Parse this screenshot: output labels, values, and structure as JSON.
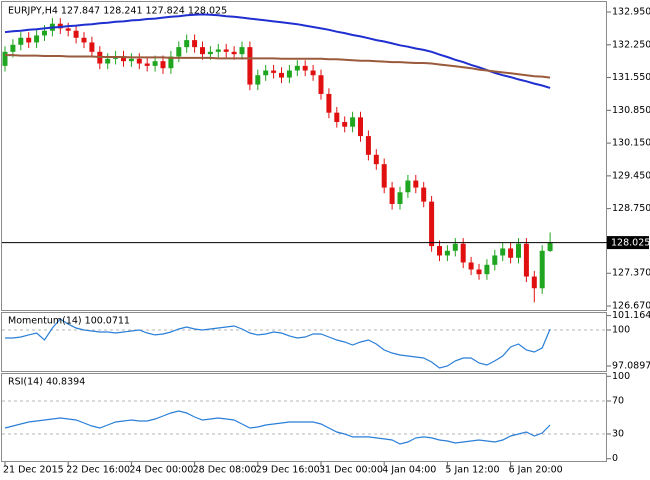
{
  "chart_data": [
    {
      "type": "candlestick",
      "title": "EURJPY,H4 127.847 128.241 127.824 128.025",
      "categories": [
        "21 Dec 2015",
        null,
        null,
        null,
        null,
        null,
        null,
        null,
        "22 Dec 16:00",
        null,
        null,
        null,
        null,
        null,
        null,
        null,
        "24 Dec 00:00",
        null,
        null,
        null,
        null,
        null,
        null,
        null,
        "28 Dec 08:00",
        null,
        null,
        null,
        null,
        null,
        null,
        null,
        "29 Dec 16:00",
        null,
        null,
        null,
        null,
        null,
        null,
        null,
        "31 Dec 00:00",
        null,
        null,
        null,
        null,
        null,
        null,
        null,
        "4 Jan 04:00",
        null,
        null,
        null,
        null,
        null,
        null,
        null,
        "5 Jan 12:00",
        null,
        null,
        null,
        null,
        null,
        null,
        null,
        "6 Jan 20:00",
        null,
        null,
        null,
        null,
        null
      ],
      "open": [
        131.8,
        132.1,
        132.25,
        132.4,
        132.3,
        132.45,
        132.55,
        132.7,
        132.6,
        132.55,
        132.4,
        132.3,
        132.1,
        131.85,
        131.95,
        132.0,
        131.9,
        131.95,
        131.85,
        131.8,
        131.9,
        131.75,
        132.0,
        132.2,
        132.35,
        132.2,
        132.05,
        132.1,
        132.15,
        132.1,
        132.05,
        132.2,
        131.4,
        131.6,
        131.7,
        131.65,
        131.55,
        131.7,
        131.8,
        131.7,
        131.6,
        131.2,
        130.8,
        130.6,
        130.5,
        130.7,
        130.3,
        129.9,
        129.7,
        129.2,
        128.85,
        129.1,
        129.35,
        129.2,
        128.9,
        127.95,
        127.75,
        127.85,
        128.0,
        127.6,
        127.45,
        127.35,
        127.55,
        127.75,
        127.9,
        127.7,
        128.0,
        127.3,
        127.05,
        127.847
      ],
      "high": [
        132.22,
        132.37,
        132.52,
        132.52,
        132.57,
        132.67,
        132.82,
        132.82,
        132.72,
        132.67,
        132.52,
        132.42,
        132.22,
        132.07,
        132.12,
        132.12,
        132.07,
        132.07,
        131.97,
        132.02,
        132.02,
        132.12,
        132.32,
        132.47,
        132.47,
        132.32,
        132.22,
        132.27,
        132.27,
        132.22,
        132.32,
        132.32,
        131.72,
        131.82,
        131.82,
        131.77,
        131.82,
        131.92,
        131.92,
        131.82,
        131.72,
        131.32,
        130.92,
        130.72,
        130.82,
        130.82,
        130.42,
        130.02,
        129.82,
        129.32,
        129.22,
        129.47,
        129.47,
        129.32,
        129.02,
        128.07,
        127.97,
        128.12,
        128.12,
        127.72,
        127.57,
        127.67,
        127.87,
        128.02,
        128.02,
        128.12,
        128.12,
        127.42,
        127.97,
        128.241
      ],
      "low": [
        131.68,
        131.98,
        132.13,
        132.18,
        132.18,
        132.33,
        132.43,
        132.48,
        132.43,
        132.28,
        132.18,
        131.98,
        131.73,
        131.73,
        131.83,
        131.78,
        131.78,
        131.73,
        131.68,
        131.68,
        131.63,
        131.63,
        131.88,
        132.08,
        132.08,
        131.93,
        131.93,
        131.98,
        131.98,
        131.93,
        131.93,
        131.28,
        131.28,
        131.48,
        131.53,
        131.43,
        131.43,
        131.58,
        131.58,
        131.48,
        131.08,
        130.68,
        130.48,
        130.38,
        130.38,
        130.18,
        129.78,
        129.58,
        129.08,
        128.73,
        128.73,
        128.98,
        129.08,
        128.78,
        127.83,
        127.63,
        127.63,
        127.73,
        127.48,
        127.33,
        127.23,
        127.23,
        127.43,
        127.63,
        127.58,
        127.58,
        127.18,
        126.75,
        126.93,
        127.824
      ],
      "close": [
        132.1,
        132.25,
        132.4,
        132.3,
        132.45,
        132.55,
        132.7,
        132.6,
        132.55,
        132.4,
        132.3,
        132.1,
        131.85,
        131.95,
        132.0,
        131.9,
        131.95,
        131.85,
        131.8,
        131.9,
        131.75,
        132.0,
        132.2,
        132.35,
        132.2,
        132.05,
        132.1,
        132.15,
        132.1,
        132.05,
        132.2,
        131.4,
        131.6,
        131.7,
        131.65,
        131.55,
        131.7,
        131.8,
        131.7,
        131.6,
        131.2,
        130.8,
        130.6,
        130.5,
        130.7,
        130.3,
        129.9,
        129.7,
        129.2,
        128.85,
        129.1,
        129.35,
        129.2,
        128.9,
        127.95,
        127.75,
        127.85,
        128.0,
        127.6,
        127.45,
        127.35,
        127.55,
        127.75,
        127.9,
        127.7,
        128.0,
        127.3,
        127.05,
        127.85,
        128.025
      ],
      "up_color": "#1fa51f",
      "down_color": "#e01010",
      "series": [
        {
          "color": "#1f2fd0",
          "values": [
            132.52,
            132.54,
            132.55,
            132.57,
            132.58,
            132.6,
            132.62,
            132.63,
            132.65,
            132.66,
            132.68,
            132.69,
            132.71,
            132.72,
            132.74,
            132.75,
            132.77,
            132.78,
            132.8,
            132.81,
            132.83,
            132.85,
            132.86,
            132.88,
            132.89,
            132.9,
            132.89,
            132.88,
            132.86,
            132.85,
            132.83,
            132.81,
            132.79,
            132.77,
            132.75,
            132.73,
            132.71,
            132.69,
            132.66,
            132.63,
            132.6,
            132.57,
            132.53,
            132.5,
            132.46,
            132.43,
            132.39,
            132.35,
            132.32,
            132.28,
            132.24,
            132.21,
            132.17,
            132.14,
            132.1,
            132.04,
            131.99,
            131.93,
            131.88,
            131.82,
            131.77,
            131.71,
            131.65,
            131.6,
            131.56,
            131.51,
            131.47,
            131.42,
            131.38,
            131.33
          ]
        },
        {
          "color": "#9a5a3c",
          "values": [
            132.03,
            132.03,
            132.02,
            132.02,
            132.02,
            132.01,
            132.01,
            132.01,
            132.0,
            132.0,
            132.0,
            132.0,
            131.99,
            131.99,
            131.99,
            131.99,
            131.98,
            131.98,
            131.98,
            131.98,
            131.98,
            131.97,
            131.97,
            131.97,
            131.97,
            131.97,
            131.97,
            131.96,
            131.96,
            131.96,
            131.96,
            131.96,
            131.96,
            131.96,
            131.96,
            131.95,
            131.95,
            131.95,
            131.95,
            131.95,
            131.95,
            131.94,
            131.94,
            131.93,
            131.92,
            131.91,
            131.91,
            131.9,
            131.89,
            131.88,
            131.88,
            131.87,
            131.86,
            131.86,
            131.85,
            131.83,
            131.81,
            131.79,
            131.77,
            131.75,
            131.72,
            131.7,
            131.68,
            131.66,
            131.64,
            131.62,
            131.6,
            131.58,
            131.57,
            131.55
          ]
        }
      ],
      "last_price": 128.025,
      "ylim": [
        126.585,
        133.164
      ],
      "yticks": [
        {
          "value": 132.95,
          "label": "132.950"
        },
        {
          "value": 132.25,
          "label": "132.250"
        },
        {
          "value": 131.55,
          "label": "131.550"
        },
        {
          "value": 130.85,
          "label": "130.850"
        },
        {
          "value": 130.15,
          "label": "130.150"
        },
        {
          "value": 129.45,
          "label": "129.450"
        },
        {
          "value": 128.75,
          "label": "128.750"
        },
        {
          "value": 127.37,
          "label": "127.370"
        },
        {
          "value": 126.67,
          "label": "126.670"
        }
      ]
    },
    {
      "type": "line",
      "title": "Momentum(14) 100.0711",
      "color": "#2a7fd8",
      "values": [
        99.35,
        99.35,
        99.43,
        99.6,
        99.76,
        99.19,
        100.16,
        100.89,
        100.48,
        100.16,
        100.0,
        99.92,
        99.84,
        99.84,
        99.76,
        99.84,
        99.92,
        100.0,
        99.76,
        99.6,
        99.68,
        99.84,
        100.08,
        100.24,
        100.08,
        100.0,
        100.08,
        100.16,
        100.24,
        100.32,
        100.08,
        99.76,
        99.6,
        99.68,
        99.84,
        99.76,
        99.52,
        99.35,
        99.43,
        99.68,
        99.68,
        99.43,
        99.19,
        99.03,
        98.79,
        99.03,
        99.19,
        98.87,
        98.38,
        98.14,
        97.98,
        97.9,
        97.82,
        97.74,
        97.41,
        96.93,
        97.09,
        97.5,
        97.74,
        97.74,
        97.33,
        97.17,
        97.5,
        97.9,
        98.63,
        98.87,
        98.38,
        98.22,
        98.55,
        100.07
      ],
      "levels": [
        100
      ],
      "ylim": [
        96.606,
        101.454
      ],
      "yticks": [
        101.1648,
        100,
        97.0897
      ]
    },
    {
      "type": "line",
      "title": "RSI(14) 40.8394",
      "color": "#2a7fd8",
      "values": [
        37.3,
        39.7,
        42.1,
        44.5,
        45.8,
        47.0,
        48.2,
        49.4,
        48.2,
        47.0,
        43.3,
        39.7,
        37.3,
        40.9,
        44.5,
        45.8,
        47.0,
        45.8,
        45.8,
        48.2,
        51.8,
        55.5,
        57.9,
        55.5,
        50.6,
        47.0,
        48.2,
        49.4,
        48.2,
        47.0,
        42.1,
        37.3,
        38.5,
        40.9,
        42.1,
        43.3,
        44.5,
        44.5,
        44.5,
        44.5,
        42.1,
        37.3,
        32.4,
        30.0,
        26.4,
        26.4,
        26.4,
        25.2,
        24.0,
        22.7,
        17.9,
        20.3,
        25.2,
        26.4,
        25.2,
        22.7,
        21.5,
        19.1,
        20.3,
        21.5,
        22.7,
        21.5,
        20.3,
        22.7,
        27.6,
        30.0,
        32.4,
        27.6,
        31.2,
        40.84
      ],
      "levels": [
        70,
        30
      ],
      "ylim": [
        -4,
        104
      ],
      "yticks": [
        100,
        70,
        30,
        0
      ]
    }
  ]
}
